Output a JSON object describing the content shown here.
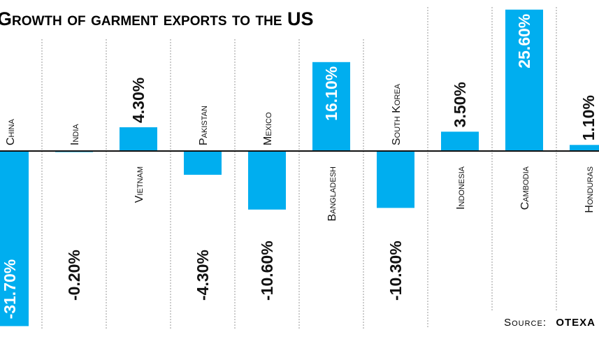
{
  "chart_data": {
    "type": "bar",
    "title": "Growth of garment exports to the US",
    "categories": [
      "China",
      "India",
      "Vietnam",
      "Pakistan",
      "Mexico",
      "Bangladesh",
      "South Korea",
      "Indonesia",
      "Cambodia",
      "Honduras"
    ],
    "values": [
      -31.7,
      -0.2,
      4.3,
      -4.3,
      -10.6,
      16.1,
      -10.3,
      3.5,
      25.6,
      1.1
    ],
    "value_labels": [
      "-31.70%",
      "-0.20%",
      "4.30%",
      "-4.30%",
      "-10.60%",
      "16.10%",
      "-10.30%",
      "3.50%",
      "25.60%",
      "1.10%"
    ],
    "color": "#00aeef",
    "source_label": "Source:",
    "source": "OTEXA"
  }
}
